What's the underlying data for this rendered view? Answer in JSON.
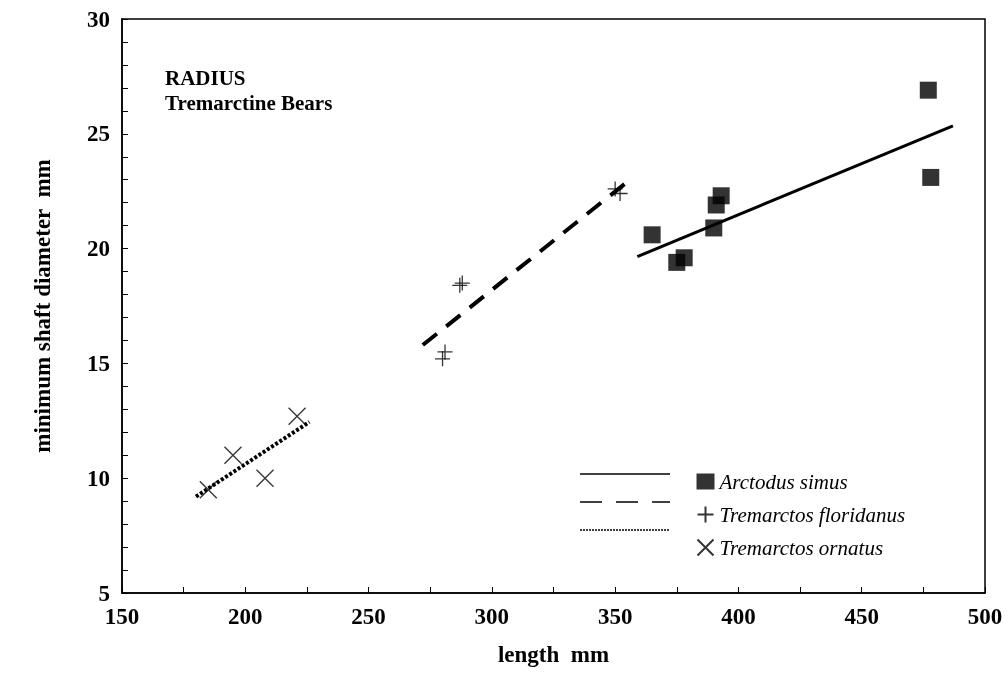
{
  "chart_data": {
    "type": "scatter",
    "title": "RADIUS",
    "subtitle": "Tremarctine Bears",
    "xlabel": "length  mm",
    "ylabel": "minimum shaft diameter  mm",
    "xlim": [
      150,
      500
    ],
    "ylim": [
      5,
      30
    ],
    "xticks": [
      150,
      {
        "value": 175,
        "label": null
      },
      200,
      {
        "value": 225,
        "label": null
      },
      250,
      {
        "value": 275,
        "label": null
      },
      300,
      {
        "value": 325,
        "label": null
      },
      350,
      {
        "value": 375,
        "label": null
      },
      400,
      {
        "value": 425,
        "label": null
      },
      450,
      {
        "value": 475,
        "label": null
      },
      500
    ],
    "yticks": [
      5,
      {
        "value": 6,
        "label": null
      },
      {
        "value": 7,
        "label": null
      },
      {
        "value": 8,
        "label": null
      },
      {
        "value": 9,
        "label": null
      },
      10,
      {
        "value": 11,
        "label": null
      },
      {
        "value": 12,
        "label": null
      },
      {
        "value": 13,
        "label": null
      },
      {
        "value": 14,
        "label": null
      },
      15,
      {
        "value": 16,
        "label": null
      },
      {
        "value": 17,
        "label": null
      },
      {
        "value": 18,
        "label": null
      },
      {
        "value": 19,
        "label": null
      },
      20,
      {
        "value": 21,
        "label": null
      },
      {
        "value": 22,
        "label": null
      },
      {
        "value": 23,
        "label": null
      },
      {
        "value": 24,
        "label": null
      },
      25,
      {
        "value": 26,
        "label": null
      },
      {
        "value": 27,
        "label": null
      },
      {
        "value": 28,
        "label": null
      },
      {
        "value": 29,
        "label": null
      },
      30
    ],
    "grid": false,
    "legend": "bottom right",
    "series": [
      {
        "name": "Arctodus simus",
        "marker": "square",
        "color": "#000000",
        "x": [
          365,
          375,
          378,
          390,
          391,
          393,
          477,
          478
        ],
        "values": [
          20.6,
          19.4,
          19.6,
          20.9,
          21.9,
          22.3,
          26.9,
          23.1
        ]
      },
      {
        "name": "Tremarctos floridanus",
        "marker": "cross",
        "color": "#000000",
        "x": [
          280,
          281,
          287,
          288,
          350,
          352
        ],
        "values": [
          15.2,
          15.5,
          18.4,
          18.5,
          22.6,
          22.4
        ]
      },
      {
        "name": "Tremarctos ornatus",
        "marker": "x",
        "color": "#000000",
        "x": [
          185,
          195,
          208,
          221
        ],
        "values": [
          9.5,
          11.0,
          10.0,
          12.7
        ]
      },
      {
        "type": "line",
        "line_style": "solid",
        "color": "#000000",
        "x": [
          359,
          487
        ],
        "values": [
          19.65,
          25.35
        ]
      },
      {
        "type": "line",
        "line_style": "dashed",
        "color": "#000000",
        "x": [
          272,
          356
        ],
        "values": [
          15.8,
          23.0
        ]
      },
      {
        "type": "line",
        "line_style": "dotted",
        "color": "#000000",
        "x": [
          180,
          226
        ],
        "values": [
          9.2,
          12.45
        ]
      }
    ]
  }
}
